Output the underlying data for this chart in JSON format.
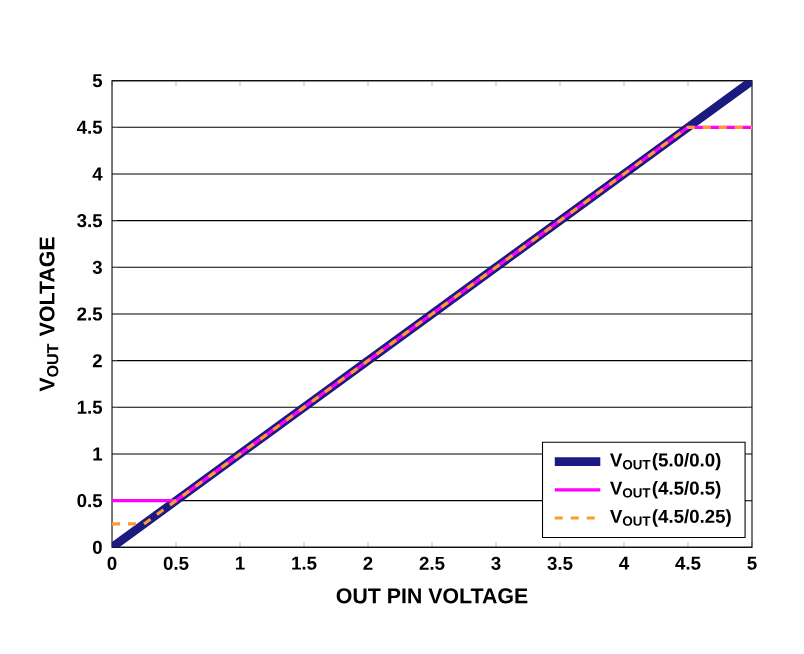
{
  "chart_data": {
    "type": "line",
    "xlabel": "OUT PIN VOLTAGE",
    "ylabel": "V$_{OUT}$ VOLTAGE",
    "xlim": [
      0,
      5
    ],
    "ylim": [
      0,
      5
    ],
    "xticks": [
      0,
      0.5,
      1,
      1.5,
      2,
      2.5,
      3,
      3.5,
      4,
      4.5,
      5
    ],
    "yticks": [
      0,
      0.5,
      1,
      1.5,
      2,
      2.5,
      3,
      3.5,
      4,
      4.5,
      5
    ],
    "grid": "y",
    "legend": "bottom right",
    "series": [
      {
        "name": "V$_{OUT}$(5.0/0.0)",
        "color": "#1a1a80",
        "line_style": "solid",
        "x": [
          0,
          0.5,
          1,
          1.5,
          2,
          2.5,
          3,
          3.5,
          4,
          4.5,
          5
        ],
        "values": [
          0,
          0.5,
          1,
          1.5,
          2,
          2.5,
          3,
          3.5,
          4,
          4.5,
          5
        ]
      },
      {
        "name": "V$_{OUT}$(4.5/0.5)",
        "color": "#ff00ff",
        "line_style": "solid",
        "x": [
          0,
          0.5,
          1,
          1.5,
          2,
          2.5,
          3,
          3.5,
          4,
          4.5,
          5
        ],
        "values": [
          0.5,
          0.5,
          1,
          1.5,
          2,
          2.5,
          3,
          3.5,
          4,
          4.5,
          4.5
        ]
      },
      {
        "name": "V$_{OUT}$(4.5/0.25)",
        "color": "#ff9933",
        "line_style": "dashed",
        "x": [
          0,
          0.25,
          0.5,
          1,
          1.5,
          2,
          2.5,
          3,
          3.5,
          4,
          4.5,
          5
        ],
        "values": [
          0.25,
          0.25,
          0.5,
          1,
          1.5,
          2,
          2.5,
          3,
          3.5,
          4,
          4.5,
          4.5
        ]
      }
    ]
  }
}
